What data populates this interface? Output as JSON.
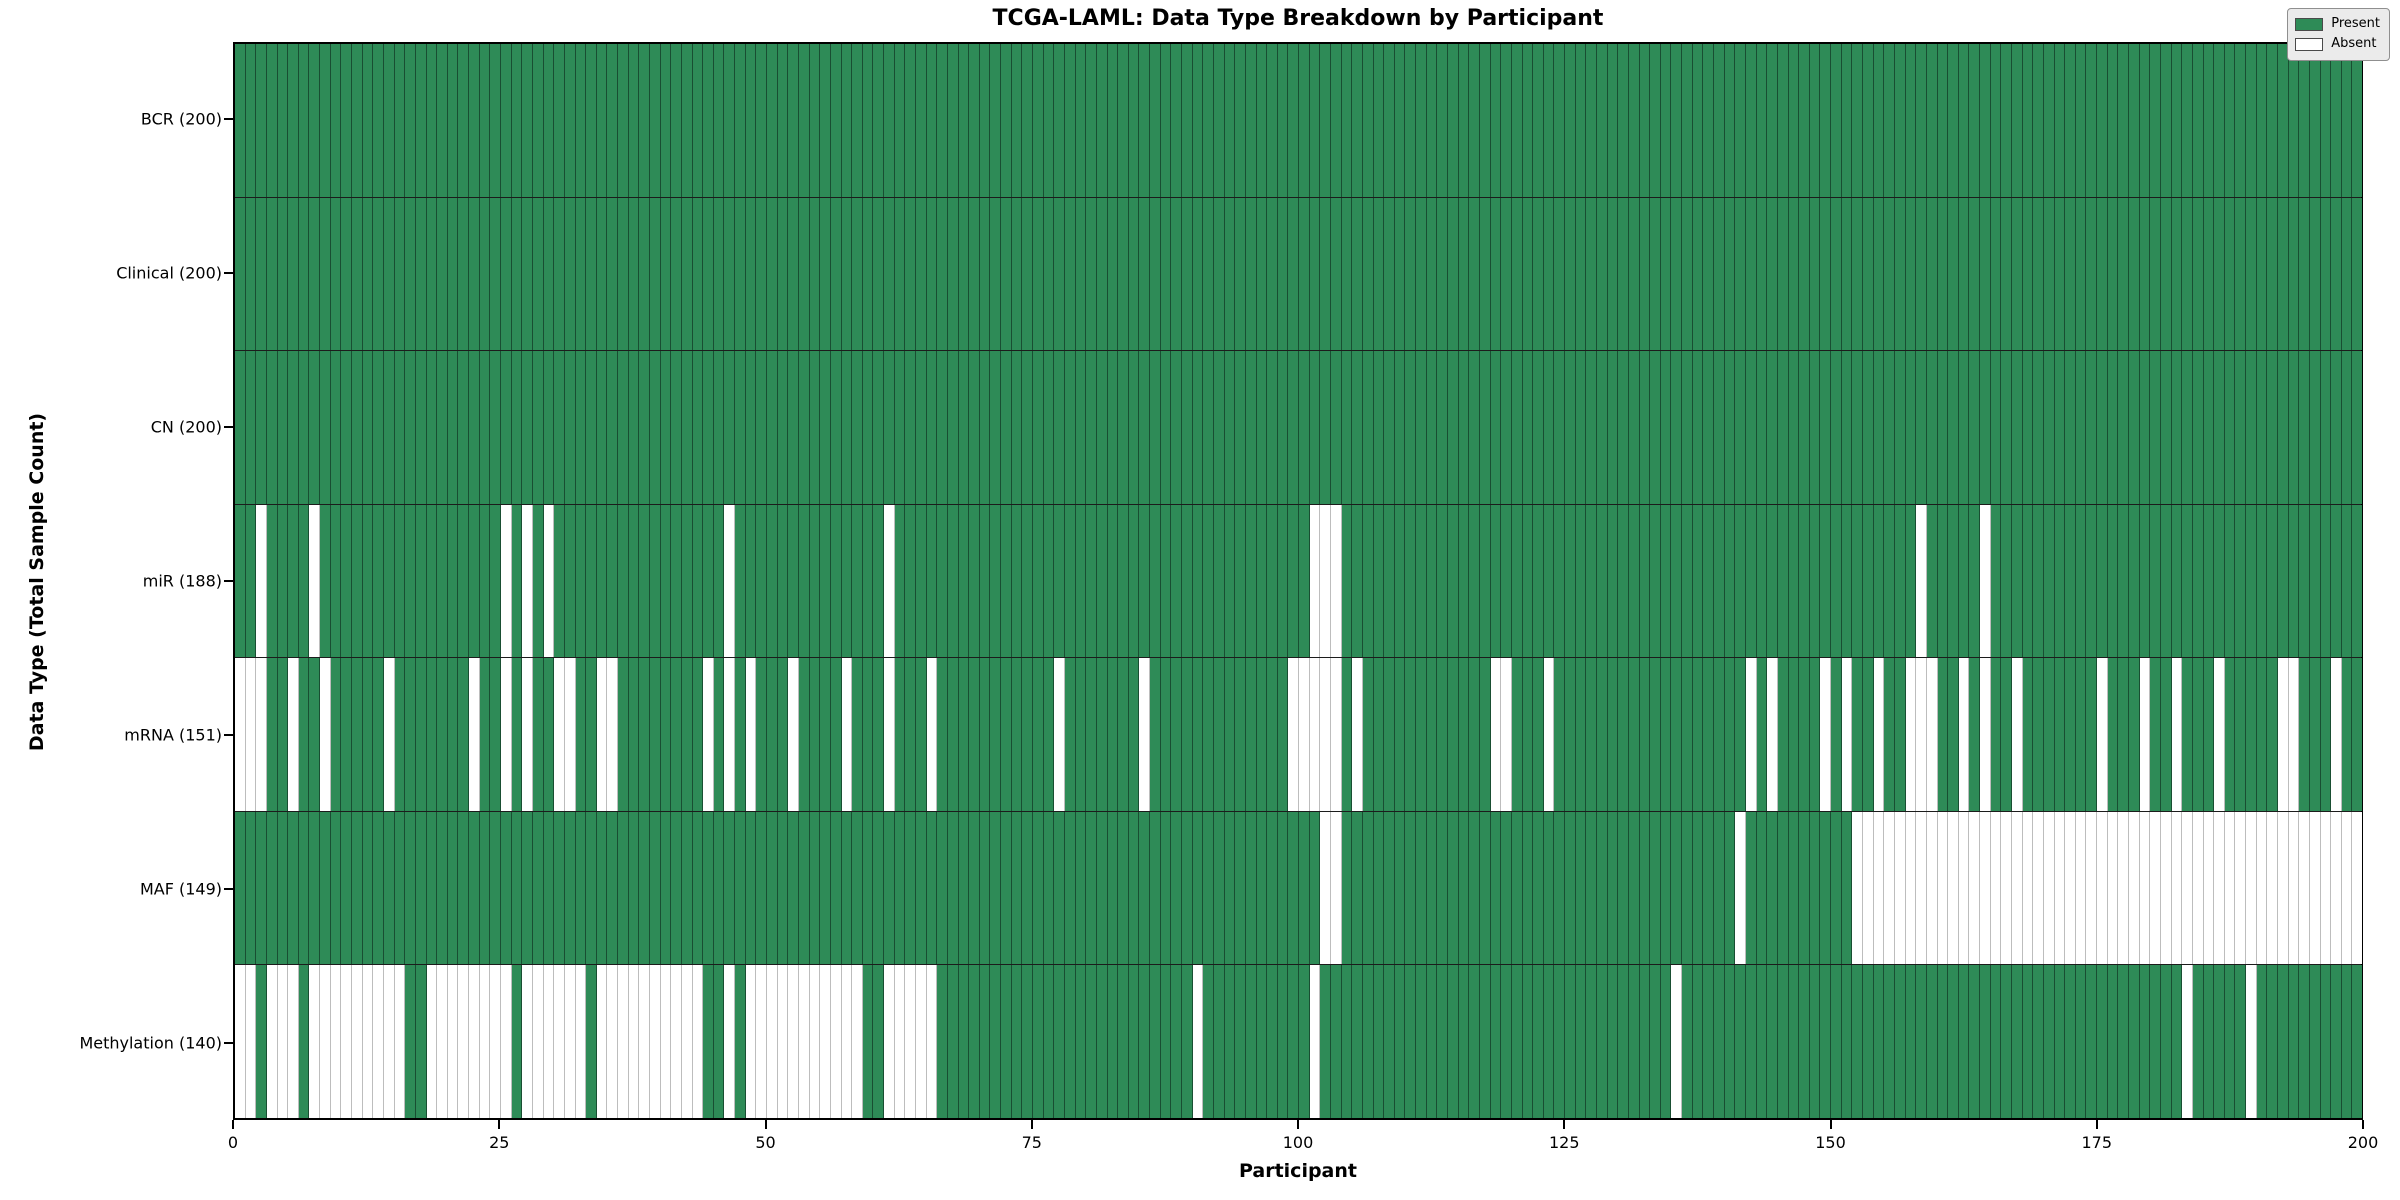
{
  "title": "TCGA-LAML: Data Type Breakdown by Participant",
  "xlabel": "Participant",
  "ylabel": "Data Type (Total Sample Count)",
  "legend": {
    "present_label": "Present",
    "absent_label": "Absent"
  },
  "colors": {
    "present": "#2e8b57",
    "absent": "#ffffff",
    "edge_on_green": "rgba(10,30,20,0.55)",
    "edge_on_white": "#bdbdbd"
  },
  "chart_data": {
    "type": "heatmap",
    "title": "TCGA-LAML: Data Type Breakdown by Participant",
    "xlabel": "Participant",
    "ylabel": "Data Type (Total Sample Count)",
    "x_range": [
      0,
      200
    ],
    "n_participants": 200,
    "x_ticks": [
      "0",
      "25",
      "50",
      "75",
      "100",
      "125",
      "150",
      "175",
      "200"
    ],
    "x_tick_values": [
      0,
      25,
      50,
      75,
      100,
      125,
      150,
      175,
      200
    ],
    "legend_position": "upper right",
    "rows": [
      {
        "key": "bcr",
        "tick_label": "BCR (200)",
        "name": "BCR",
        "present_count": 200,
        "absent": []
      },
      {
        "key": "clinical",
        "tick_label": "Clinical (200)",
        "name": "Clinical",
        "present_count": 200,
        "absent": []
      },
      {
        "key": "cn",
        "tick_label": "CN (200)",
        "name": "CN",
        "present_count": 200,
        "absent": []
      },
      {
        "key": "mir",
        "tick_label": "miR (188)",
        "name": "miR",
        "present_count": 188,
        "absent": [
          2,
          7,
          25,
          27,
          29,
          46,
          61,
          101,
          102,
          103,
          158,
          164
        ]
      },
      {
        "key": "mrna",
        "tick_label": "mRNA (151)",
        "name": "mRNA",
        "present_count": 151,
        "absent": [
          0,
          1,
          2,
          5,
          8,
          14,
          22,
          25,
          27,
          30,
          31,
          34,
          35,
          44,
          46,
          48,
          52,
          57,
          61,
          65,
          77,
          85,
          99,
          100,
          101,
          102,
          103,
          105,
          118,
          119,
          123,
          142,
          144,
          149,
          151,
          154,
          157,
          158,
          159,
          162,
          164,
          167,
          175,
          179,
          182,
          186,
          192,
          193,
          197
        ]
      },
      {
        "key": "maf",
        "tick_label": "MAF (149)",
        "name": "MAF",
        "present_count": 149,
        "absent": [
          102,
          103,
          141,
          152,
          153,
          154,
          155,
          156,
          157,
          158,
          159,
          160,
          161,
          162,
          163,
          164,
          165,
          166,
          167,
          168,
          169,
          170,
          171,
          172,
          173,
          174,
          175,
          176,
          177,
          178,
          179,
          180,
          181,
          182,
          183,
          184,
          185,
          186,
          187,
          188,
          189,
          190,
          191,
          192,
          193,
          194,
          195,
          196,
          197,
          198,
          199
        ]
      },
      {
        "key": "methylation",
        "tick_label": "Methylation (140)",
        "name": "Methylation",
        "present_count": 140,
        "absent": [
          0,
          1,
          3,
          4,
          5,
          7,
          8,
          9,
          10,
          11,
          12,
          13,
          14,
          15,
          18,
          19,
          20,
          21,
          22,
          23,
          24,
          25,
          27,
          28,
          29,
          30,
          31,
          32,
          34,
          35,
          36,
          37,
          38,
          39,
          40,
          41,
          42,
          43,
          46,
          48,
          49,
          50,
          51,
          52,
          53,
          54,
          55,
          56,
          57,
          58,
          61,
          62,
          63,
          64,
          65,
          90,
          101,
          135,
          183,
          189
        ]
      }
    ]
  }
}
